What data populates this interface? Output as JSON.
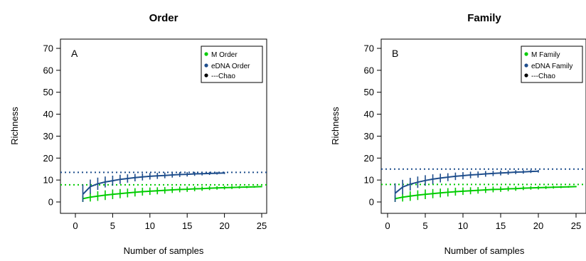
{
  "chart_data": [
    {
      "type": "line",
      "title": "Order",
      "panel_label": "A",
      "xlabel": "Number of samples",
      "ylabel": "Richness",
      "xlim": [
        0,
        25
      ],
      "ylim": [
        0,
        70
      ],
      "x_ticks": [
        "0",
        "5",
        "10",
        "15",
        "20",
        "25"
      ],
      "y_ticks": [
        "0",
        "10",
        "20",
        "30",
        "40",
        "50",
        "60",
        "70"
      ],
      "grid": false,
      "legend_position": "top-right",
      "legend": [
        {
          "label": "M Order",
          "color": "#00cc00"
        },
        {
          "label": "eDNA Order",
          "color": "#1f4e8c"
        },
        {
          "label": "---Chao",
          "color": "#000000"
        }
      ],
      "series": [
        {
          "name": "M Order",
          "color": "#00cc00",
          "x": [
            1,
            2,
            3,
            4,
            5,
            6,
            7,
            8,
            9,
            10,
            11,
            12,
            13,
            14,
            15,
            16,
            17,
            18,
            19,
            20,
            21,
            22,
            23,
            24,
            25
          ],
          "y": [
            1.5,
            2.2,
            2.7,
            3.1,
            3.5,
            3.8,
            4.1,
            4.4,
            4.7,
            4.9,
            5.1,
            5.3,
            5.5,
            5.7,
            5.8,
            6.0,
            6.1,
            6.3,
            6.4,
            6.5,
            6.6,
            6.7,
            6.8,
            6.9,
            7.0
          ],
          "err": [
            1.5,
            2,
            2.2,
            2.2,
            2.2,
            2.1,
            2.0,
            1.9,
            1.8,
            1.7,
            1.6,
            1.5,
            1.4,
            1.3,
            1.2,
            1.1,
            1.0,
            0.9,
            0.8,
            0.8,
            0.7,
            0.6,
            0.5,
            0.4,
            0.3
          ]
        },
        {
          "name": "eDNA Order",
          "color": "#1f4e8c",
          "x": [
            1,
            2,
            3,
            4,
            5,
            6,
            7,
            8,
            9,
            10,
            11,
            12,
            13,
            14,
            15,
            16,
            17,
            18,
            19,
            20
          ],
          "y": [
            3.5,
            7.0,
            8.3,
            9.1,
            9.7,
            10.3,
            10.7,
            11.1,
            11.4,
            11.7,
            11.9,
            12.1,
            12.3,
            12.5,
            12.6,
            12.8,
            12.9,
            13.0,
            13.1,
            13.2
          ],
          "err": [
            4.5,
            3.2,
            2.8,
            2.5,
            2.3,
            2.1,
            1.9,
            1.7,
            1.6,
            1.5,
            1.4,
            1.3,
            1.2,
            1.1,
            1.0,
            0.9,
            0.8,
            0.7,
            0.6,
            0.5
          ]
        }
      ],
      "chao_lines": [
        {
          "name": "eDNA Order Chao",
          "y": 13.5,
          "color": "#1f4e8c"
        },
        {
          "name": "M Order Chao",
          "y": 7.8,
          "color": "#00cc00"
        }
      ]
    },
    {
      "type": "line",
      "title": "Family",
      "panel_label": "B",
      "xlabel": "Number of samples",
      "ylabel": "Richness",
      "xlim": [
        0,
        25
      ],
      "ylim": [
        0,
        70
      ],
      "x_ticks": [
        "0",
        "5",
        "10",
        "15",
        "20",
        "25"
      ],
      "y_ticks": [
        "0",
        "10",
        "20",
        "30",
        "40",
        "50",
        "60",
        "70"
      ],
      "grid": false,
      "legend_position": "top-right",
      "legend": [
        {
          "label": "M Family",
          "color": "#00cc00"
        },
        {
          "label": "eDNA Family",
          "color": "#1f4e8c"
        },
        {
          "label": "---Chao",
          "color": "#000000"
        }
      ],
      "series": [
        {
          "name": "M Family",
          "color": "#00cc00",
          "x": [
            1,
            2,
            3,
            4,
            5,
            6,
            7,
            8,
            9,
            10,
            11,
            12,
            13,
            14,
            15,
            16,
            17,
            18,
            19,
            20,
            21,
            22,
            23,
            24,
            25
          ],
          "y": [
            1.5,
            2.2,
            2.7,
            3.1,
            3.5,
            3.8,
            4.1,
            4.4,
            4.7,
            4.9,
            5.1,
            5.3,
            5.5,
            5.7,
            5.8,
            6.0,
            6.1,
            6.3,
            6.4,
            6.5,
            6.6,
            6.7,
            6.8,
            6.9,
            7.0
          ],
          "err": [
            1.5,
            2,
            2.2,
            2.2,
            2.2,
            2.1,
            2.0,
            1.9,
            1.8,
            1.7,
            1.6,
            1.5,
            1.4,
            1.3,
            1.2,
            1.1,
            1.0,
            0.9,
            0.8,
            0.8,
            0.7,
            0.6,
            0.5,
            0.4,
            0.3
          ]
        },
        {
          "name": "eDNA Family",
          "color": "#1f4e8c",
          "x": [
            1,
            2,
            3,
            4,
            5,
            6,
            7,
            8,
            9,
            10,
            11,
            12,
            13,
            14,
            15,
            16,
            17,
            18,
            19,
            20
          ],
          "y": [
            4.0,
            6.8,
            8.1,
            9.0,
            9.8,
            10.4,
            10.9,
            11.3,
            11.7,
            12.0,
            12.3,
            12.5,
            12.8,
            13.0,
            13.2,
            13.4,
            13.6,
            13.7,
            13.9,
            14.0
          ],
          "err": [
            4.5,
            3.3,
            2.9,
            2.6,
            2.4,
            2.2,
            2.0,
            1.8,
            1.7,
            1.6,
            1.5,
            1.4,
            1.3,
            1.2,
            1.1,
            1.0,
            0.9,
            0.8,
            0.7,
            0.6
          ]
        }
      ],
      "chao_lines": [
        {
          "name": "eDNA Family Chao",
          "y": 15.0,
          "color": "#1f4e8c"
        },
        {
          "name": "M Family Chao",
          "y": 8.0,
          "color": "#00cc00"
        }
      ]
    }
  ]
}
